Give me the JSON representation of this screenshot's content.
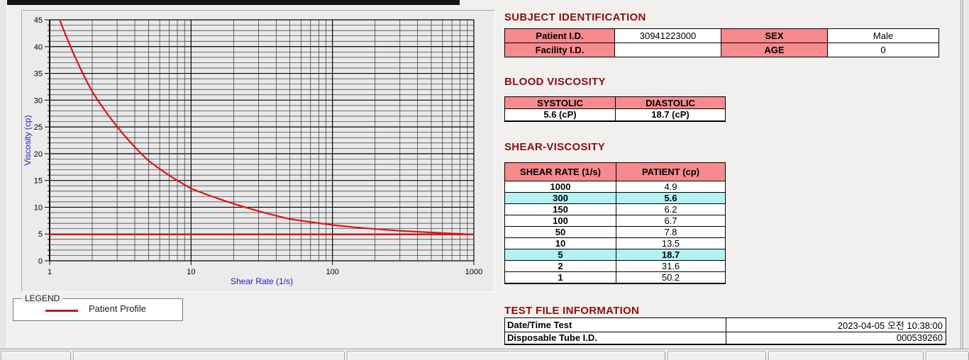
{
  "colors": {
    "header_pink": "#f68a8d",
    "highlight_cyan": "#b2f2f2",
    "title_maroon": "#8b0f0f",
    "series_red": "#e01414",
    "legend_red": "#b22222",
    "axis_label_blue": "#2121bd"
  },
  "legend": {
    "box_label": "LEGEND",
    "series_label": "Patient Profile"
  },
  "sections": {
    "subject": {
      "title": "SUBJECT IDENTIFICATION",
      "rows": [
        {
          "label1": "Patient I.D.",
          "value1": "30941223000",
          "label2": "SEX",
          "value2": "Male"
        },
        {
          "label1": "Facility I.D.",
          "value1": "",
          "label2": "AGE",
          "value2": "0"
        }
      ]
    },
    "blood_viscosity": {
      "title": "BLOOD VISCOSITY",
      "headers": [
        "SYSTOLIC",
        "DIASTOLIC"
      ],
      "values": [
        "5.6 (cP)",
        "18.7 (cP)"
      ]
    },
    "shear_viscosity": {
      "title": "SHEAR-VISCOSITY",
      "headers": [
        "SHEAR RATE (1/s)",
        "PATIENT (cp)"
      ],
      "rows": [
        {
          "shear": "1000",
          "patient": "4.9",
          "highlight": false
        },
        {
          "shear": "300",
          "patient": "5.6",
          "highlight": true
        },
        {
          "shear": "150",
          "patient": "6.2",
          "highlight": false
        },
        {
          "shear": "100",
          "patient": "6.7",
          "highlight": false
        },
        {
          "shear": "50",
          "patient": "7.8",
          "highlight": false
        },
        {
          "shear": "10",
          "patient": "13.5",
          "highlight": false
        },
        {
          "shear": "5",
          "patient": "18.7",
          "highlight": true
        },
        {
          "shear": "2",
          "patient": "31.6",
          "highlight": false
        },
        {
          "shear": "1",
          "patient": "50.2",
          "highlight": false
        }
      ]
    },
    "test_file": {
      "title": "TEST FILE INFORMATION",
      "rows": [
        {
          "label": "Date/Time Test",
          "value": "2023-04-05  오전 10:38:00"
        },
        {
          "label": "Disposable Tube I.D.",
          "value": "000539260"
        }
      ]
    }
  },
  "chart_data": {
    "type": "line",
    "title": "",
    "xlabel": "Shear Rate (1/s)",
    "ylabel": "Viscosity (cp)",
    "x_scale": "log",
    "xlim": [
      1,
      1000
    ],
    "ylim": [
      0,
      45
    ],
    "x_ticks": [
      1,
      10,
      100,
      1000
    ],
    "y_tick_step": 5,
    "y_minor_step": 1,
    "grid": true,
    "legend_position": "below-left",
    "x": [
      1,
      2,
      5,
      10,
      50,
      100,
      150,
      300,
      1000
    ],
    "series": [
      {
        "name": "Patient Profile",
        "values": [
          50.2,
          31.6,
          18.7,
          13.5,
          7.8,
          6.7,
          6.2,
          5.6,
          4.9
        ]
      }
    ],
    "reference_line_y": 4.9
  }
}
